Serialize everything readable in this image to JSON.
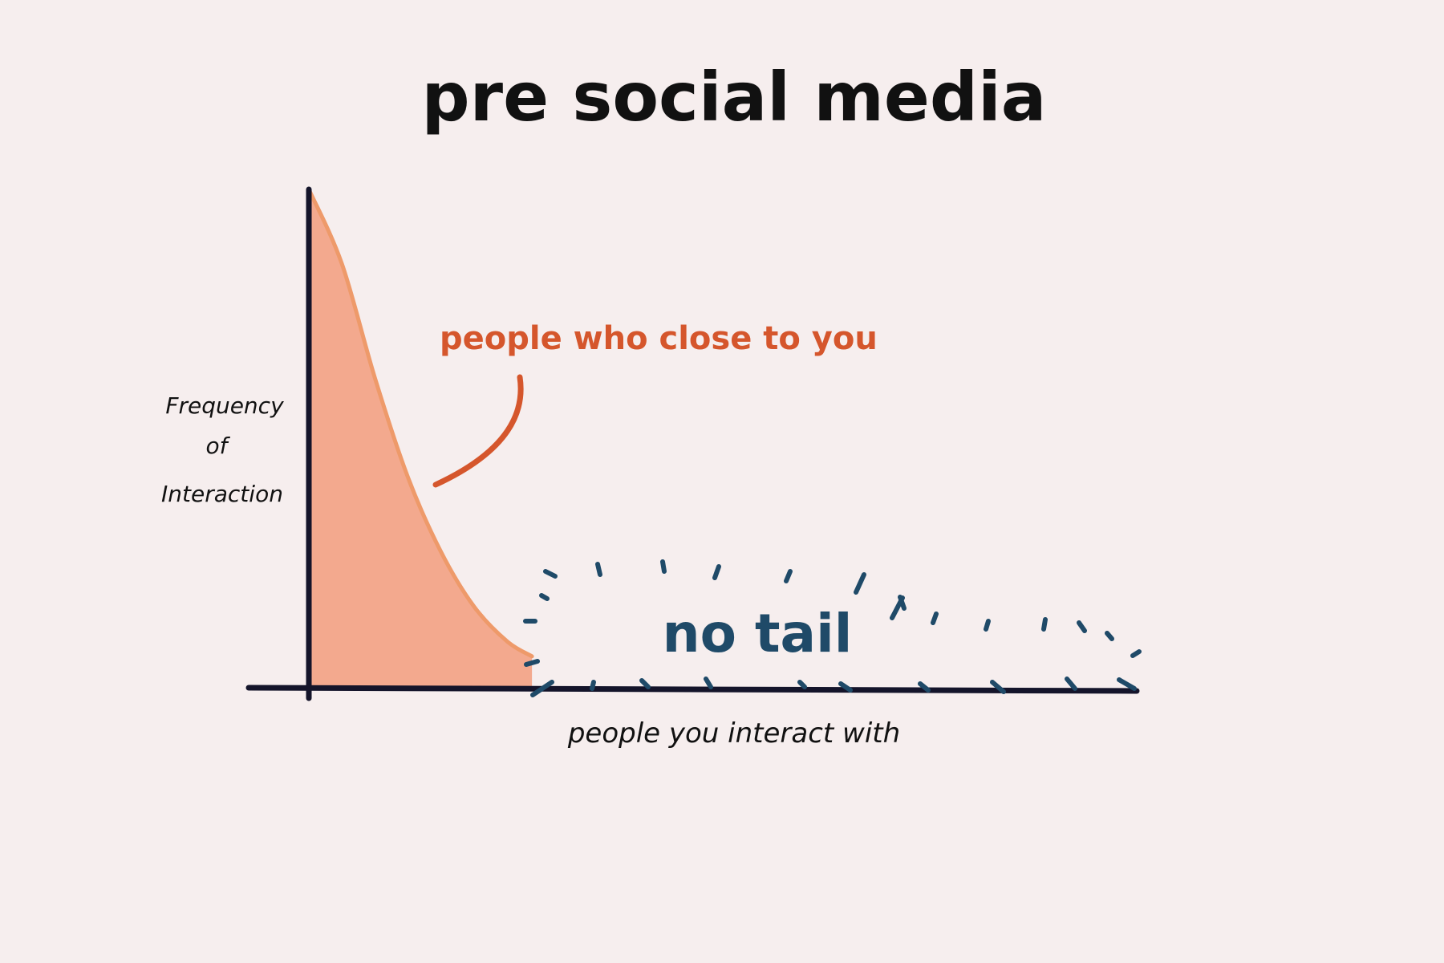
{
  "colors": {
    "background": "#f6eeee",
    "axis": "#14142a",
    "curve_fill": "#f2a488",
    "curve_edge": "#ee9a6a",
    "annotation": "#d5562c",
    "tail": "#1f4a68",
    "text": "#111111"
  },
  "chart_data": {
    "type": "area",
    "title": "pre social media",
    "xlabel": "people you interact with",
    "ylabel": [
      "Frequency",
      "of",
      "Interaction"
    ],
    "grid": false,
    "legend": "none",
    "xlim": [
      0,
      100
    ],
    "ylim": [
      0,
      100
    ],
    "series": [
      {
        "x": [
          0,
          4,
          8,
          12,
          16,
          20,
          24,
          27
        ],
        "y": [
          100,
          85,
          62,
          42,
          27,
          16,
          9,
          6
        ]
      }
    ],
    "annotations": [
      {
        "text": "people who close to you",
        "target": "curve"
      },
      {
        "text": "no tail",
        "target": "tail region"
      }
    ]
  }
}
